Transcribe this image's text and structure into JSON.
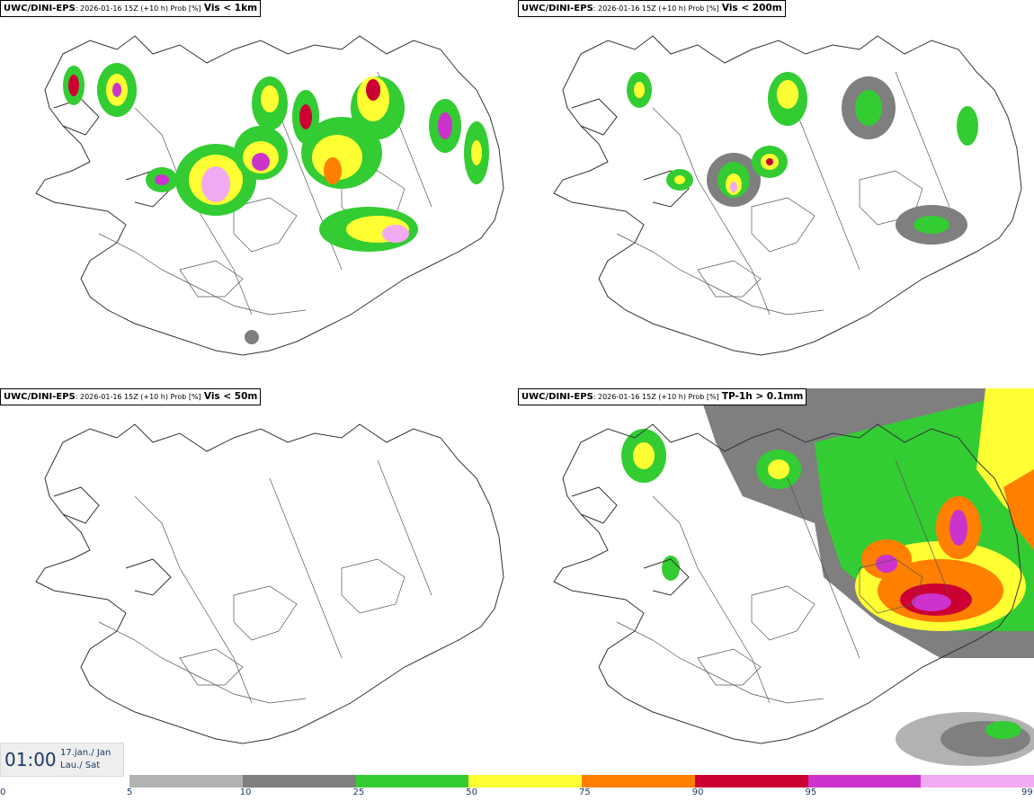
{
  "panels": [
    {
      "model": "UWC/DINI-EPS",
      "info": ": 2026-01-16 15Z (+10 h) Prob [%]",
      "variable": "Vis < 1km"
    },
    {
      "model": "UWC/DINI-EPS",
      "info": ": 2026-01-16 15Z (+10 h) Prob [%]",
      "variable": "Vis < 200m"
    },
    {
      "model": "UWC/DINI-EPS",
      "info": ": 2026-01-16 15Z (+10 h) Prob [%]",
      "variable": "Vis < 50m"
    },
    {
      "model": "UWC/DINI-EPS",
      "info": ": 2026-01-16 15Z (+10 h) Prob [%]",
      "variable": "TP-1h > 0.1mm"
    }
  ],
  "timestamp": {
    "time": "01:00",
    "date_line1": "17.jan./ Jan",
    "date_line2": "Lau./ Sat"
  },
  "legend": {
    "ticks": [
      "0",
      "5",
      "10",
      "25",
      "50",
      "75",
      "90",
      "95",
      "99"
    ],
    "colors": [
      "#b2b2b2",
      "#7f7f7f",
      "#33cc33",
      "#ffff33",
      "#ff7f00",
      "#cc0033",
      "#cc33cc",
      "#f2aaf2"
    ]
  },
  "colors": {
    "text": "#1b3a63",
    "coast": "#333333",
    "roads": "#555555"
  }
}
